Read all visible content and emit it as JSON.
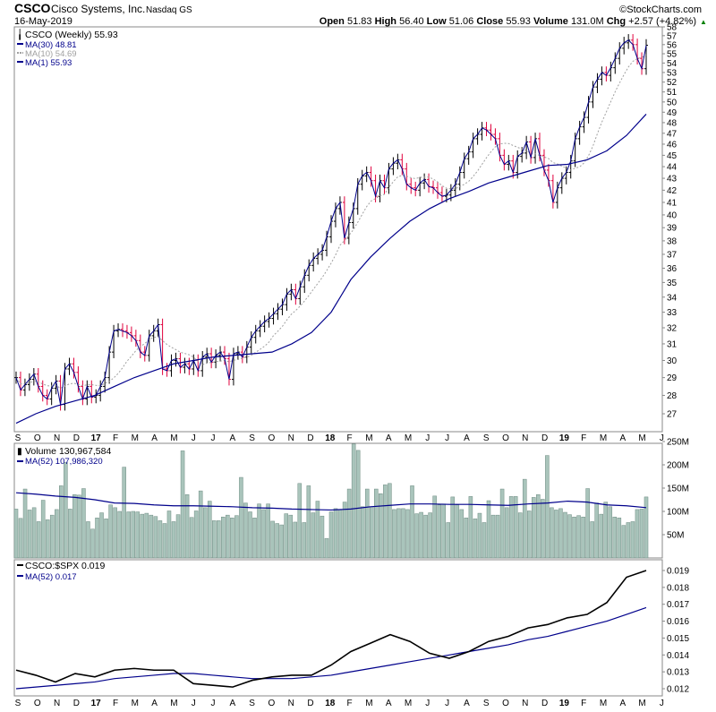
{
  "header": {
    "symbol": "CSCO",
    "company": "Cisco Systems, Inc.",
    "exchange": "Nasdaq GS",
    "copyright": "©StockCharts.com",
    "date": "16-May-2019",
    "open_label": "Open",
    "open": "51.83",
    "high_label": "High",
    "high": "56.40",
    "low_label": "Low",
    "low": "51.06",
    "close_label": "Close",
    "close": "55.93",
    "volume_label": "Volume",
    "volume": "131.0M",
    "chg_label": "Chg",
    "chg": "+2.57 (+4.82%)",
    "chg_arrow": "▲"
  },
  "legends": {
    "price": "CSCO (Weekly) 55.93",
    "ma30": "MA(30) 48.81",
    "ma10": "MA(10) 54.69",
    "ma1": "MA(1) 55.93",
    "volume": "Volume 130,967,584",
    "vol_ma": "MA(52) 107,986,320",
    "rel": "CSCO:$SPX 0.019",
    "rel_ma": "MA(52) 0.017"
  },
  "colors": {
    "up": "#000000",
    "down": "#e0003c",
    "ma_blue": "#00008b",
    "ma10": "#a0a0a0",
    "volume_fill": "#a9c4bb",
    "volume_stroke": "#6e8c82",
    "rel_line": "#000000"
  },
  "chart_data": [
    {
      "type": "line",
      "title": "CSCO (Weekly)",
      "scale": "log",
      "ylim": [
        27,
        58
      ],
      "y_ticks": [
        "58",
        "57",
        "56",
        "55",
        "54",
        "53",
        "52",
        "51",
        "50",
        "49",
        "48",
        "47",
        "46",
        "45",
        "44",
        "43",
        "42",
        "41",
        "40",
        "39",
        "38",
        "37",
        "36",
        "35",
        "34",
        "33",
        "32",
        "31",
        "30",
        "29",
        "28",
        "27"
      ],
      "x_labels": [
        "S",
        "O",
        "N",
        "D",
        "17",
        "F",
        "M",
        "A",
        "M",
        "J",
        "J",
        "A",
        "S",
        "O",
        "N",
        "D",
        "18",
        "F",
        "M",
        "A",
        "M",
        "J",
        "J",
        "A",
        "S",
        "O",
        "N",
        "D",
        "19",
        "F",
        "M",
        "A",
        "M",
        "J"
      ],
      "weekly_close": [
        29.0,
        28.3,
        28.6,
        28.9,
        29.2,
        28.5,
        28.0,
        27.8,
        28.4,
        28.8,
        27.5,
        29.5,
        29.8,
        29.3,
        28.5,
        27.8,
        28.5,
        27.9,
        28.0,
        28.5,
        29.0,
        30.5,
        31.8,
        31.9,
        31.8,
        31.7,
        31.5,
        31.2,
        30.5,
        30.3,
        31.5,
        31.8,
        32.2,
        29.5,
        29.4,
        30.0,
        30.1,
        29.6,
        29.8,
        29.5,
        30.0,
        29.4,
        30.2,
        30.4,
        29.9,
        30.3,
        30.5,
        30.1,
        28.9,
        30.4,
        30.5,
        30.2,
        30.8,
        31.4,
        31.8,
        32.1,
        32.4,
        32.6,
        32.9,
        33.2,
        33.5,
        34.2,
        34.5,
        33.9,
        34.7,
        35.5,
        36.2,
        36.7,
        37.0,
        37.3,
        38.3,
        39.5,
        40.5,
        41.0,
        38.2,
        39.4,
        40.5,
        42.5,
        43.2,
        43.5,
        42.8,
        41.5,
        42.8,
        42.2,
        43.8,
        44.3,
        44.6,
        43.8,
        42.5,
        42.2,
        42.0,
        42.6,
        42.9,
        42.3,
        42.2,
        41.8,
        41.5,
        41.6,
        42.0,
        42.5,
        43.5,
        44.7,
        45.3,
        46.5,
        46.9,
        47.5,
        47.3,
        46.9,
        46.5,
        45.0,
        44.2,
        44.5,
        43.5,
        44.9,
        45.2,
        46.2,
        44.8,
        46.5,
        45.0,
        43.7,
        42.8,
        41.0,
        42.2,
        43.0,
        43.5,
        44.5,
        46.5,
        47.6,
        48.5,
        50.0,
        51.5,
        52.3,
        53.0,
        52.7,
        53.5,
        54.5,
        55.6,
        56.2,
        56.5,
        56.0,
        54.5,
        53.4,
        55.93
      ],
      "ma30_monthly": [
        26.5,
        27.0,
        27.4,
        27.7,
        28.0,
        28.5,
        29.0,
        29.4,
        29.8,
        30.0,
        30.2,
        30.3,
        30.4,
        30.5,
        31.0,
        31.7,
        33.0,
        35.2,
        36.8,
        38.2,
        39.5,
        40.5,
        41.3,
        41.9,
        42.6,
        43.1,
        43.6,
        44.1,
        44.2,
        44.6,
        45.4,
        46.8,
        48.81
      ]
    },
    {
      "type": "bar",
      "title": "Volume",
      "unit": "M",
      "ylim": [
        0,
        260
      ],
      "y_ticks": [
        "250M",
        "200M",
        "150M",
        "100M",
        "50M"
      ],
      "values": [
        105,
        85,
        148,
        103,
        108,
        78,
        124,
        82,
        92,
        104,
        155,
        205,
        105,
        136,
        135,
        149,
        78,
        62,
        86,
        97,
        84,
        114,
        108,
        100,
        195,
        99,
        100,
        99,
        94,
        96,
        92,
        89,
        80,
        74,
        101,
        78,
        93,
        230,
        136,
        87,
        101,
        144,
        108,
        122,
        80,
        80,
        88,
        92,
        86,
        91,
        173,
        118,
        99,
        86,
        116,
        104,
        116,
        79,
        74,
        71,
        95,
        92,
        77,
        160,
        76,
        155,
        97,
        122,
        90,
        42,
        99,
        106,
        104,
        120,
        148,
        245,
        231,
        110,
        148,
        110,
        148,
        138,
        157,
        160,
        104,
        106,
        106,
        104,
        155,
        95,
        98,
        92,
        97,
        133,
        114,
        116,
        76,
        131,
        114,
        104,
        86,
        132,
        84,
        96,
        76,
        123,
        92,
        92,
        148,
        108,
        132,
        132,
        97,
        169,
        101,
        130,
        136,
        126,
        220,
        108,
        103,
        106,
        98,
        93,
        88,
        91,
        88,
        149,
        78,
        118,
        94,
        120,
        110,
        88,
        86,
        70,
        76,
        78,
        104,
        105,
        131
      ],
      "ma52_monthly": [
        140,
        137,
        133,
        130,
        125,
        118,
        117,
        114,
        112,
        112,
        111,
        110,
        108,
        107,
        105,
        104,
        103,
        105,
        110,
        113,
        116,
        116,
        115,
        115,
        114,
        113,
        116,
        118,
        122,
        120,
        114,
        112,
        108
      ]
    },
    {
      "type": "line",
      "title": "CSCO:$SPX",
      "ylim": [
        0.0115,
        0.0197
      ],
      "y_ticks": [
        "0.019",
        "0.018",
        "0.017",
        "0.016",
        "0.015",
        "0.014",
        "0.013",
        "0.012"
      ],
      "ratio_monthly": [
        0.0131,
        0.0128,
        0.0124,
        0.0129,
        0.0127,
        0.0131,
        0.0132,
        0.0131,
        0.0131,
        0.0123,
        0.0122,
        0.0121,
        0.0125,
        0.0127,
        0.0128,
        0.0128,
        0.0134,
        0.0142,
        0.0147,
        0.0152,
        0.0148,
        0.0141,
        0.0138,
        0.0142,
        0.0148,
        0.0151,
        0.0156,
        0.0158,
        0.0162,
        0.0164,
        0.0171,
        0.0186,
        0.019
      ],
      "ma52_monthly": [
        0.012,
        0.0121,
        0.0122,
        0.0123,
        0.0124,
        0.0126,
        0.0127,
        0.0128,
        0.0129,
        0.0129,
        0.0128,
        0.0127,
        0.0126,
        0.0126,
        0.0126,
        0.0127,
        0.0128,
        0.013,
        0.0132,
        0.0134,
        0.0136,
        0.0138,
        0.014,
        0.0142,
        0.0144,
        0.0146,
        0.0149,
        0.0151,
        0.0154,
        0.0157,
        0.016,
        0.0164,
        0.0168
      ]
    }
  ]
}
